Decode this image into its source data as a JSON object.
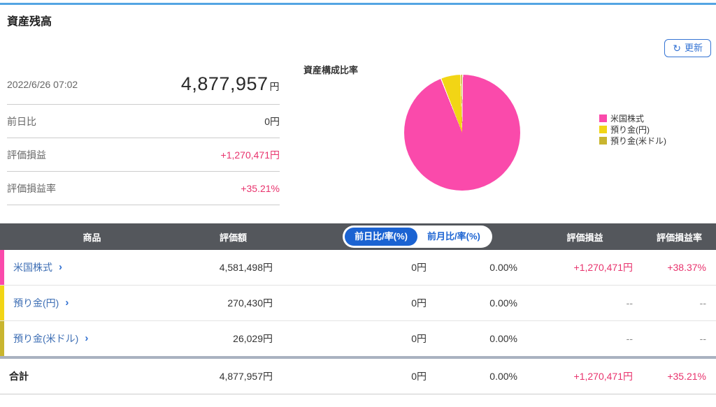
{
  "page": {
    "title": "資産残高"
  },
  "icons": {
    "refresh": "↻",
    "chevron": "›"
  },
  "refresh_button": {
    "label": "更新"
  },
  "summary": {
    "timestamp": "2022/6/26 07:02",
    "total_value": "4,877,957",
    "total_unit": "円",
    "rows": [
      {
        "label": "前日比",
        "value": "0円"
      },
      {
        "label": "評価損益",
        "value": "+1,270,471円"
      },
      {
        "label": "評価損益率",
        "value": "+35.21%"
      }
    ]
  },
  "chart_data": {
    "type": "pie",
    "title": "資産構成比率",
    "labels": [
      "米国株式",
      "預り金(円)",
      "預り金(米ドル)"
    ],
    "values": [
      4581498,
      270430,
      26029
    ],
    "percentages": [
      93.92,
      5.54,
      0.53
    ],
    "unit": "円",
    "colors": [
      "#fa4aab",
      "#f2d515",
      "#c9b52f"
    ],
    "legend_position": "right"
  },
  "colors": {
    "accent_blue": "#1b63d2",
    "top_bar_blue": "#54a5e3",
    "positive_pink": "#e8336d",
    "header_gray": "#54575c"
  },
  "table": {
    "headers": {
      "product": "商品",
      "value": "評価額",
      "pl": "評価損益",
      "pl_rate": "評価損益率"
    },
    "toggle": {
      "options": [
        "前日比/率(%)",
        "前月比/率(%)"
      ],
      "active_index": 0
    },
    "rows": [
      {
        "product": "米国株式",
        "value": "4,581,498円",
        "day_change": "0円",
        "day_change_rate": "0.00%",
        "pl": "+1,270,471円",
        "pl_rate": "+38.37%",
        "color": "#fa4aab"
      },
      {
        "product": "預り金(円)",
        "value": "270,430円",
        "day_change": "0円",
        "day_change_rate": "0.00%",
        "pl": "--",
        "pl_rate": "--",
        "color": "#f2d515"
      },
      {
        "product": "預り金(米ドル)",
        "value": "26,029円",
        "day_change": "0円",
        "day_change_rate": "0.00%",
        "pl": "--",
        "pl_rate": "--",
        "color": "#c9b52f"
      }
    ],
    "total": {
      "label": "合計",
      "value": "4,877,957円",
      "day_change": "0円",
      "day_change_rate": "0.00%",
      "pl": "+1,270,471円",
      "pl_rate": "+35.21%"
    }
  }
}
